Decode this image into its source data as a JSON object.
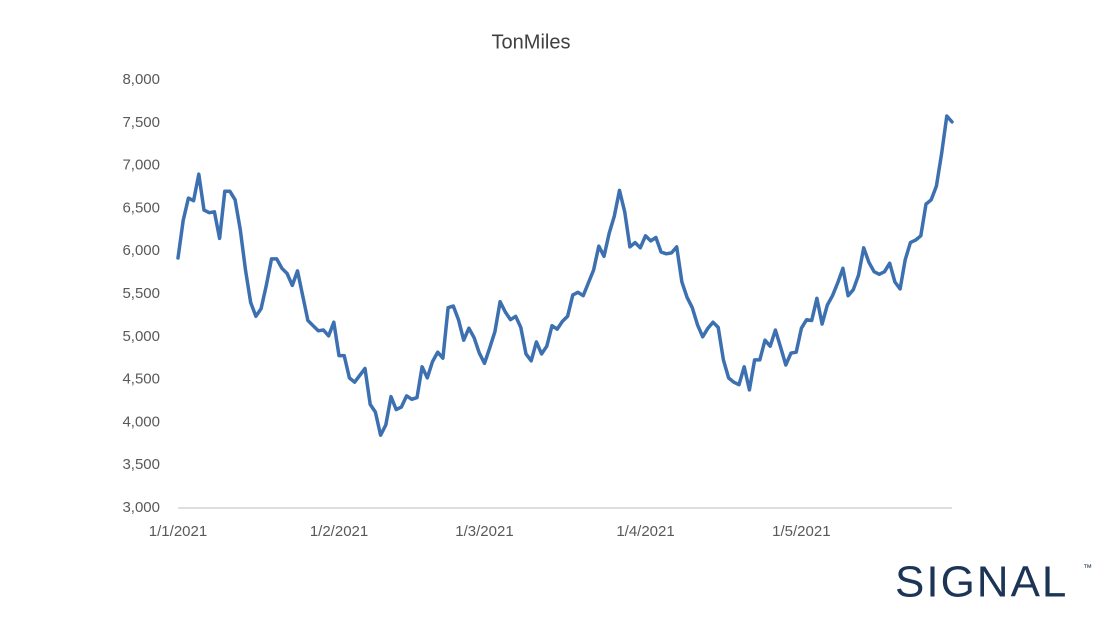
{
  "chart_data": {
    "type": "line",
    "title": "TonMiles",
    "categories": [
      "1/1/2021",
      null,
      null,
      null,
      null,
      null,
      null,
      null,
      null,
      null,
      null,
      null,
      null,
      null,
      null,
      null,
      null,
      null,
      null,
      null,
      null,
      null,
      null,
      null,
      null,
      null,
      null,
      null,
      null,
      null,
      null,
      "1/2/2021",
      null,
      null,
      null,
      null,
      null,
      null,
      null,
      null,
      null,
      null,
      null,
      null,
      null,
      null,
      null,
      null,
      null,
      null,
      null,
      null,
      null,
      null,
      null,
      null,
      null,
      null,
      null,
      "1/3/2021",
      null,
      null,
      null,
      null,
      null,
      null,
      null,
      null,
      null,
      null,
      null,
      null,
      null,
      null,
      null,
      null,
      null,
      null,
      null,
      null,
      null,
      null,
      null,
      null,
      null,
      null,
      null,
      null,
      null,
      null,
      "1/4/2021",
      null,
      null,
      null,
      null,
      null,
      null,
      null,
      null,
      null,
      null,
      null,
      null,
      null,
      null,
      null,
      null,
      null,
      null,
      null,
      null,
      null,
      null,
      null,
      null,
      null,
      null,
      null,
      null,
      null,
      "1/5/2021",
      null,
      null,
      null,
      null,
      null,
      null,
      null,
      null,
      null,
      null,
      null,
      null,
      null,
      null,
      null,
      null,
      null,
      null,
      null,
      null,
      null,
      null,
      null,
      null,
      null,
      null,
      null,
      null,
      null
    ],
    "series": [
      {
        "name": "TonMiles",
        "color": "#3c70b0",
        "values": [
          5920,
          6360,
          6620,
          6590,
          6900,
          6480,
          6450,
          6460,
          6150,
          6700,
          6700,
          6600,
          6250,
          5780,
          5400,
          5240,
          5330,
          5600,
          5910,
          5910,
          5800,
          5740,
          5600,
          5770,
          5480,
          5190,
          5130,
          5070,
          5080,
          5010,
          5170,
          4780,
          4780,
          4520,
          4470,
          4550,
          4630,
          4210,
          4120,
          3850,
          3970,
          4300,
          4150,
          4180,
          4310,
          4270,
          4290,
          4650,
          4520,
          4710,
          4820,
          4750,
          5340,
          5360,
          5200,
          4960,
          5100,
          4990,
          4810,
          4690,
          4870,
          5060,
          5410,
          5290,
          5200,
          5240,
          5110,
          4800,
          4720,
          4940,
          4800,
          4890,
          5130,
          5090,
          5180,
          5240,
          5490,
          5520,
          5480,
          5630,
          5780,
          6060,
          5940,
          6210,
          6410,
          6710,
          6460,
          6050,
          6100,
          6040,
          6180,
          6120,
          6160,
          5990,
          5970,
          5980,
          6050,
          5640,
          5460,
          5340,
          5140,
          5000,
          5100,
          5170,
          5110,
          4730,
          4520,
          4470,
          4440,
          4650,
          4380,
          4730,
          4730,
          4960,
          4890,
          5080,
          4880,
          4670,
          4810,
          4820,
          5100,
          5200,
          5190,
          5450,
          5150,
          5370,
          5480,
          5630,
          5800,
          5480,
          5550,
          5720,
          6040,
          5870,
          5760,
          5730,
          5760,
          5860,
          5640,
          5560,
          5900,
          6100,
          6130,
          6180,
          6550,
          6600,
          6760,
          7140,
          7580,
          7510
        ]
      }
    ],
    "ylim": [
      3000,
      8000
    ],
    "yticks": [
      {
        "value": 3000,
        "label": "3,000"
      },
      {
        "value": 3500,
        "label": "3,500"
      },
      {
        "value": 4000,
        "label": "4,000"
      },
      {
        "value": 4500,
        "label": "4,500"
      },
      {
        "value": 5000,
        "label": "5,000"
      },
      {
        "value": 5500,
        "label": "5,500"
      },
      {
        "value": 6000,
        "label": "6,000"
      },
      {
        "value": 6500,
        "label": "6,500"
      },
      {
        "value": 7000,
        "label": "7,000"
      },
      {
        "value": 7500,
        "label": "7,500"
      },
      {
        "value": 8000,
        "label": "8,000"
      }
    ],
    "grid": false
  },
  "logo": {
    "text": "SIGNAL",
    "mark": "™"
  }
}
